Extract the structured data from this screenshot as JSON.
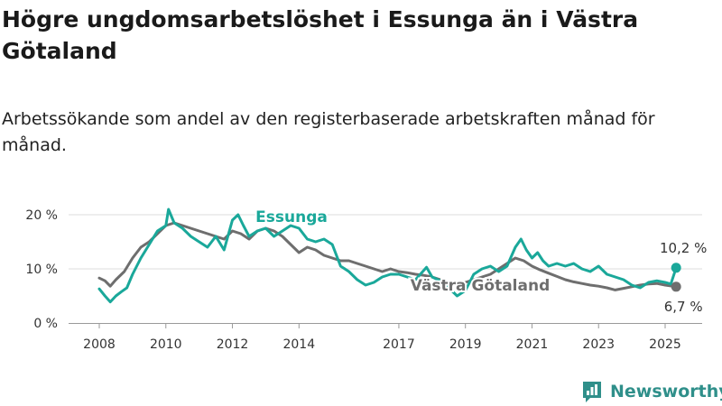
{
  "title": "Högre ungdomsarbetslöshet i Essunga än i Västra Götaland",
  "subtitle": "Arbetssökande som andel av den registerbaserade arbetskraften månad för månad.",
  "brand": {
    "name": "Newsworthy",
    "icon": "newsworthy-logo-icon"
  },
  "colors": {
    "essunga": "#1aa89a",
    "vastra_gotaland": "#6e6e6e",
    "grid": "#dcdcdc",
    "axis": "#9a9a9a"
  },
  "chart_data": {
    "type": "line",
    "title": "Högre ungdomsarbetslöshet i Essunga än i Västra Götaland",
    "subtitle": "Arbetssökande som andel av den registerbaserade arbetskraften månad för månad.",
    "xlabel": "",
    "ylabel": "",
    "x_ticks": [
      2008,
      2010,
      2012,
      2014,
      2017,
      2019,
      2021,
      2023,
      2025
    ],
    "x_range": [
      2007.0,
      2025.75
    ],
    "y_ticks": [
      0,
      10,
      20
    ],
    "y_tick_labels": [
      "0 %",
      "10 %",
      "20 %"
    ],
    "ylim": [
      0,
      22.5
    ],
    "grid": "horizontal",
    "legend": "direct labels",
    "series": [
      {
        "name": "Essunga",
        "end_label": "10,2 %",
        "points": [
          [
            2008.0,
            6.3
          ],
          [
            2008.17,
            5.0
          ],
          [
            2008.33,
            3.9
          ],
          [
            2008.5,
            5.0
          ],
          [
            2008.67,
            5.8
          ],
          [
            2008.83,
            6.5
          ],
          [
            2009.0,
            9.0
          ],
          [
            2009.25,
            12.0
          ],
          [
            2009.5,
            14.5
          ],
          [
            2009.75,
            17.0
          ],
          [
            2010.0,
            18.0
          ],
          [
            2010.08,
            21.0
          ],
          [
            2010.25,
            18.5
          ],
          [
            2010.5,
            17.5
          ],
          [
            2010.75,
            16.0
          ],
          [
            2011.0,
            15.0
          ],
          [
            2011.25,
            14.0
          ],
          [
            2011.5,
            16.0
          ],
          [
            2011.75,
            13.5
          ],
          [
            2012.0,
            19.0
          ],
          [
            2012.17,
            20.0
          ],
          [
            2012.33,
            18.0
          ],
          [
            2012.5,
            16.0
          ],
          [
            2012.75,
            17.0
          ],
          [
            2013.0,
            17.5
          ],
          [
            2013.25,
            16.0
          ],
          [
            2013.5,
            17.0
          ],
          [
            2013.75,
            18.0
          ],
          [
            2014.0,
            17.5
          ],
          [
            2014.25,
            15.5
          ],
          [
            2014.5,
            15.0
          ],
          [
            2014.75,
            15.5
          ],
          [
            2015.0,
            14.5
          ],
          [
            2015.25,
            10.5
          ],
          [
            2015.5,
            9.5
          ],
          [
            2015.75,
            8.0
          ],
          [
            2016.0,
            7.0
          ],
          [
            2016.25,
            7.5
          ],
          [
            2016.5,
            8.5
          ],
          [
            2016.75,
            9.0
          ],
          [
            2017.0,
            9.0
          ],
          [
            2017.5,
            8.0
          ],
          [
            2017.83,
            10.3
          ],
          [
            2018.0,
            8.5
          ],
          [
            2018.25,
            7.8
          ],
          [
            2018.5,
            6.5
          ],
          [
            2018.75,
            5.0
          ],
          [
            2019.0,
            6.0
          ],
          [
            2019.25,
            9.0
          ],
          [
            2019.5,
            10.0
          ],
          [
            2019.75,
            10.5
          ],
          [
            2020.0,
            9.5
          ],
          [
            2020.25,
            10.5
          ],
          [
            2020.5,
            14.0
          ],
          [
            2020.67,
            15.5
          ],
          [
            2020.83,
            13.5
          ],
          [
            2021.0,
            12.0
          ],
          [
            2021.17,
            13.0
          ],
          [
            2021.33,
            11.5
          ],
          [
            2021.5,
            10.5
          ],
          [
            2021.75,
            11.0
          ],
          [
            2022.0,
            10.5
          ],
          [
            2022.25,
            11.0
          ],
          [
            2022.5,
            10.0
          ],
          [
            2022.75,
            9.5
          ],
          [
            2023.0,
            10.5
          ],
          [
            2023.25,
            9.0
          ],
          [
            2023.5,
            8.5
          ],
          [
            2023.75,
            8.0
          ],
          [
            2024.0,
            7.0
          ],
          [
            2024.25,
            6.5
          ],
          [
            2024.5,
            7.5
          ],
          [
            2024.75,
            7.8
          ],
          [
            2025.0,
            7.5
          ],
          [
            2025.17,
            7.2
          ],
          [
            2025.33,
            10.2
          ]
        ]
      },
      {
        "name": "Västra Götaland",
        "end_label": "6,7 %",
        "points": [
          [
            2008.0,
            8.3
          ],
          [
            2008.17,
            7.8
          ],
          [
            2008.33,
            6.8
          ],
          [
            2008.5,
            8.0
          ],
          [
            2008.75,
            9.5
          ],
          [
            2009.0,
            12.0
          ],
          [
            2009.25,
            14.0
          ],
          [
            2009.5,
            15.0
          ],
          [
            2009.75,
            16.5
          ],
          [
            2010.0,
            18.0
          ],
          [
            2010.25,
            18.5
          ],
          [
            2010.5,
            18.0
          ],
          [
            2010.75,
            17.5
          ],
          [
            2011.0,
            17.0
          ],
          [
            2011.25,
            16.5
          ],
          [
            2011.5,
            16.0
          ],
          [
            2011.75,
            15.5
          ],
          [
            2012.0,
            17.0
          ],
          [
            2012.25,
            16.5
          ],
          [
            2012.5,
            15.5
          ],
          [
            2012.75,
            17.0
          ],
          [
            2013.0,
            17.5
          ],
          [
            2013.25,
            17.0
          ],
          [
            2013.5,
            16.0
          ],
          [
            2013.75,
            14.5
          ],
          [
            2014.0,
            13.0
          ],
          [
            2014.25,
            14.0
          ],
          [
            2014.5,
            13.5
          ],
          [
            2014.75,
            12.5
          ],
          [
            2015.0,
            12.0
          ],
          [
            2015.25,
            11.5
          ],
          [
            2015.5,
            11.5
          ],
          [
            2015.75,
            11.0
          ],
          [
            2016.0,
            10.5
          ],
          [
            2016.25,
            10.0
          ],
          [
            2016.5,
            9.5
          ],
          [
            2016.75,
            10.0
          ],
          [
            2017.0,
            9.5
          ],
          [
            2017.25,
            9.3
          ],
          [
            2017.5,
            9.0
          ],
          [
            2017.75,
            8.8
          ],
          [
            2018.0,
            8.5
          ],
          [
            2018.25,
            8.0
          ],
          [
            2018.5,
            7.5
          ],
          [
            2018.75,
            7.2
          ],
          [
            2019.0,
            7.5
          ],
          [
            2019.25,
            8.0
          ],
          [
            2019.5,
            8.5
          ],
          [
            2019.75,
            9.0
          ],
          [
            2020.0,
            10.0
          ],
          [
            2020.25,
            11.0
          ],
          [
            2020.5,
            12.0
          ],
          [
            2020.75,
            11.5
          ],
          [
            2021.0,
            10.5
          ],
          [
            2021.25,
            9.8
          ],
          [
            2021.5,
            9.2
          ],
          [
            2021.75,
            8.6
          ],
          [
            2022.0,
            8.0
          ],
          [
            2022.25,
            7.6
          ],
          [
            2022.5,
            7.3
          ],
          [
            2022.75,
            7.0
          ],
          [
            2023.0,
            6.8
          ],
          [
            2023.25,
            6.5
          ],
          [
            2023.5,
            6.1
          ],
          [
            2023.75,
            6.4
          ],
          [
            2024.0,
            6.7
          ],
          [
            2024.25,
            7.0
          ],
          [
            2024.5,
            7.2
          ],
          [
            2024.75,
            7.3
          ],
          [
            2025.0,
            7.0
          ],
          [
            2025.33,
            6.7
          ]
        ]
      }
    ]
  }
}
